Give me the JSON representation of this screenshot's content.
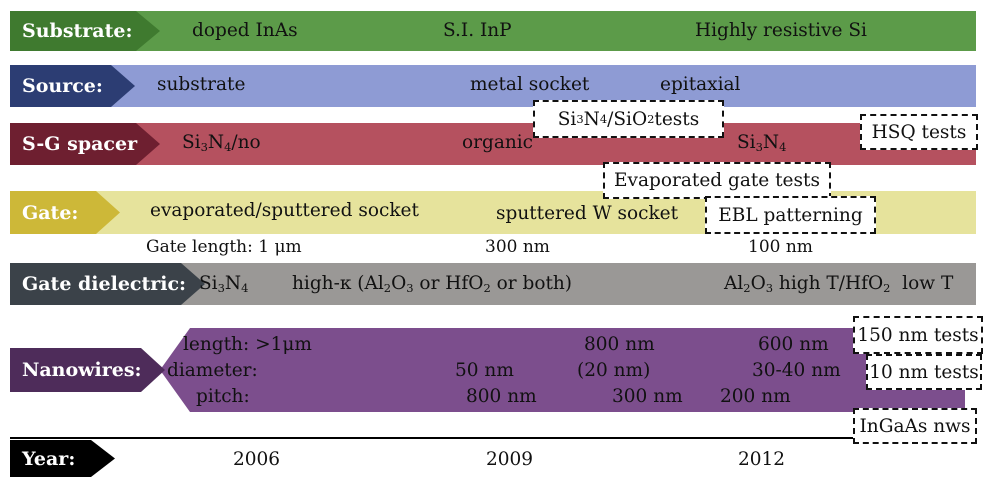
{
  "rows": {
    "substrate": {
      "label": "Substrate:",
      "items": [
        "doped InAs",
        "S.I. InP",
        "Highly resistive Si"
      ]
    },
    "source": {
      "label": "Source:",
      "items": [
        "substrate",
        "metal socket",
        "epitaxial"
      ],
      "test_box": "Si3N4/SiO2 tests"
    },
    "spacer": {
      "label": "S-G spacer",
      "items": [
        "Si3N4/no",
        "organic",
        "Si3N4"
      ],
      "test_box": "HSQ tests",
      "gate_test_box": "Evaporated gate tests"
    },
    "gate": {
      "label": "Gate:",
      "items": [
        "evaporated/sputtered socket",
        "sputtered W socket"
      ],
      "test_box": "EBL patterning",
      "length_label": "Gate length: 1 μm",
      "lengths": [
        "300 nm",
        "100 nm"
      ]
    },
    "dielectric": {
      "label": "Gate dielectric:",
      "items": [
        "Si3N4",
        "high-κ (Al2O3 or HfO2 or both)",
        "Al2O3 high T/HfO2  low T"
      ]
    },
    "nanowires": {
      "label": "Nanowires:",
      "row_labels": [
        "length: >1μm",
        "diameter:",
        "pitch:"
      ],
      "length_values": [
        "800 nm",
        "600 nm"
      ],
      "diameter_values": [
        "50 nm",
        "(20 nm)",
        "30-40 nm"
      ],
      "pitch_values": [
        "800 nm",
        "300 nm",
        "200 nm"
      ],
      "test_boxes": [
        "150 nm tests",
        "10 nm tests",
        "InGaAs nws"
      ]
    },
    "year": {
      "label": "Year:",
      "items": [
        "2006",
        "2009",
        "2012"
      ]
    }
  },
  "colors": {
    "substrate": "#5c9b49",
    "substrate_label": "#3f7a2f",
    "source": "#8e9bd4",
    "source_label": "#2c3d73",
    "spacer": "#b5515f",
    "spacer_label": "#6e1f30",
    "gate": "#e6e39c",
    "gate_label": "#cdb838",
    "dielectric": "#9a9896",
    "dielectric_label": "#3b4249",
    "nanowires": "#7c4e8d",
    "nanowires_label": "#4e2c5a",
    "year_label": "#000000"
  }
}
